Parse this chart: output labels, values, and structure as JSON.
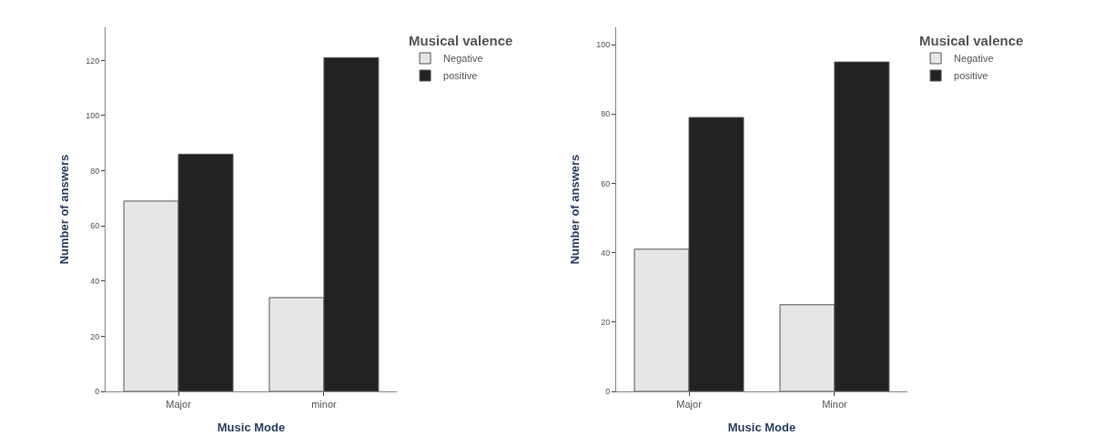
{
  "chart_data": [
    {
      "type": "bar",
      "xlabel": "Music Mode",
      "ylabel": "Number of answers",
      "legend_title": "Musical valence",
      "legend": "top right",
      "categories": [
        "Major",
        "minor"
      ],
      "ylim": [
        0,
        132
      ],
      "yticks": [
        0,
        20,
        40,
        60,
        80,
        100,
        120
      ],
      "series": [
        {
          "name": "Negative",
          "color": "#e6e6e6",
          "values": [
            69,
            34
          ]
        },
        {
          "name": "positive",
          "color": "#222222",
          "values": [
            86,
            121
          ]
        }
      ]
    },
    {
      "type": "bar",
      "xlabel": "Music Mode",
      "ylabel": "Number of answers",
      "legend_title": "Musical valence",
      "legend": "top right",
      "categories": [
        "Major",
        "Minor"
      ],
      "ylim": [
        0,
        105
      ],
      "yticks": [
        0,
        20,
        40,
        60,
        80,
        100
      ],
      "series": [
        {
          "name": "Negative",
          "color": "#e6e6e6",
          "values": [
            41,
            25
          ]
        },
        {
          "name": "positive",
          "color": "#222222",
          "values": [
            79,
            95
          ]
        }
      ]
    }
  ]
}
